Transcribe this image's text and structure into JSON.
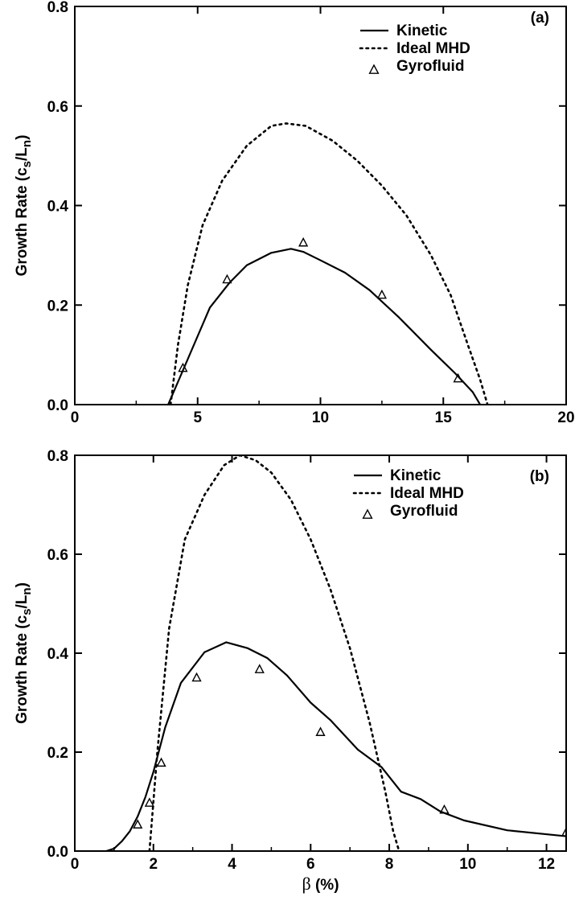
{
  "chart_data": [
    {
      "type": "line",
      "panel_tag": "(a)",
      "ylabel": "Growth Rate (c",
      "ylabel_sub1": "s",
      "ylabel_mid": "/L",
      "ylabel_sub2": "n",
      "ylabel_end": ")",
      "xlim": [
        0,
        20
      ],
      "ylim": [
        0,
        0.8
      ],
      "xticks": [
        0,
        5,
        10,
        15,
        20
      ],
      "xtick_labels": [
        "0",
        "5",
        "10",
        "15",
        "20"
      ],
      "yticks": [
        0.0,
        0.2,
        0.4,
        0.6,
        0.8
      ],
      "ytick_labels": [
        "0.0",
        "0.2",
        "0.4",
        "0.6",
        "0.8"
      ],
      "legend_position": "top-right",
      "series": [
        {
          "name": "Kinetic",
          "style": "solid",
          "x": [
            3.8,
            4.5,
            5.5,
            6.3,
            7.0,
            8.0,
            8.8,
            9.3,
            10.0,
            11.0,
            12.0,
            13.2,
            14.5,
            15.5,
            16.2,
            16.5
          ],
          "y": [
            0.0,
            0.08,
            0.195,
            0.245,
            0.28,
            0.305,
            0.313,
            0.307,
            0.29,
            0.265,
            0.23,
            0.175,
            0.11,
            0.062,
            0.025,
            0.0
          ]
        },
        {
          "name": "Ideal MHD",
          "style": "dotted",
          "x": [
            3.9,
            4.2,
            4.6,
            5.2,
            6.0,
            7.0,
            8.0,
            8.6,
            9.4,
            10.5,
            11.5,
            12.5,
            13.5,
            14.5,
            15.3,
            16.0,
            16.5,
            16.8
          ],
          "y": [
            0.0,
            0.12,
            0.24,
            0.36,
            0.45,
            0.52,
            0.56,
            0.565,
            0.56,
            0.53,
            0.49,
            0.44,
            0.38,
            0.3,
            0.22,
            0.12,
            0.05,
            0.0
          ]
        },
        {
          "name": "Gyrofluid",
          "style": "triangle",
          "x": [
            4.4,
            6.2,
            9.3,
            12.5,
            15.6
          ],
          "y": [
            0.073,
            0.251,
            0.325,
            0.22,
            0.052
          ]
        }
      ]
    },
    {
      "type": "line",
      "panel_tag": "(b)",
      "xlabel_symbol": "β",
      "xlabel_rest": " (%)",
      "ylabel": "Growth Rate (c",
      "ylabel_sub1": "s",
      "ylabel_mid": "/L",
      "ylabel_sub2": "n",
      "ylabel_end": ")",
      "xlim": [
        0,
        12.5
      ],
      "ylim": [
        0,
        0.8
      ],
      "xticks": [
        0,
        2,
        4,
        6,
        8,
        10,
        12
      ],
      "xtick_labels": [
        "0",
        "2",
        "4",
        "6",
        "8",
        "10",
        "12"
      ],
      "yticks": [
        0.0,
        0.2,
        0.4,
        0.6,
        0.8
      ],
      "ytick_labels": [
        "0.0",
        "0.2",
        "0.4",
        "0.6",
        "0.8"
      ],
      "legend_position": "top-right",
      "series": [
        {
          "name": "Kinetic",
          "style": "solid",
          "x": [
            0.8,
            1.0,
            1.2,
            1.4,
            1.6,
            1.8,
            2.0,
            2.3,
            2.7,
            3.3,
            3.85,
            4.4,
            4.9,
            5.4,
            6.0,
            6.5,
            7.2,
            7.8,
            8.3,
            8.8,
            9.3,
            9.9,
            11.0,
            12.5
          ],
          "y": [
            0.0,
            0.005,
            0.02,
            0.04,
            0.07,
            0.11,
            0.16,
            0.25,
            0.34,
            0.402,
            0.422,
            0.41,
            0.39,
            0.355,
            0.3,
            0.265,
            0.205,
            0.17,
            0.12,
            0.105,
            0.08,
            0.062,
            0.042,
            0.03
          ]
        },
        {
          "name": "Ideal MHD",
          "style": "dotted",
          "x": [
            1.9,
            2.1,
            2.4,
            2.8,
            3.3,
            3.8,
            4.2,
            4.6,
            5.0,
            5.5,
            6.0,
            6.5,
            7.0,
            7.5,
            7.9,
            8.1,
            8.25
          ],
          "y": [
            0.0,
            0.2,
            0.45,
            0.63,
            0.72,
            0.78,
            0.8,
            0.79,
            0.765,
            0.71,
            0.63,
            0.53,
            0.41,
            0.26,
            0.12,
            0.04,
            0.0
          ]
        },
        {
          "name": "Gyrofluid",
          "style": "triangle",
          "x": [
            1.6,
            1.9,
            2.2,
            3.1,
            4.7,
            6.25,
            9.4,
            12.5
          ],
          "y": [
            0.053,
            0.097,
            0.178,
            0.35,
            0.367,
            0.24,
            0.083,
            0.037
          ]
        }
      ]
    }
  ]
}
